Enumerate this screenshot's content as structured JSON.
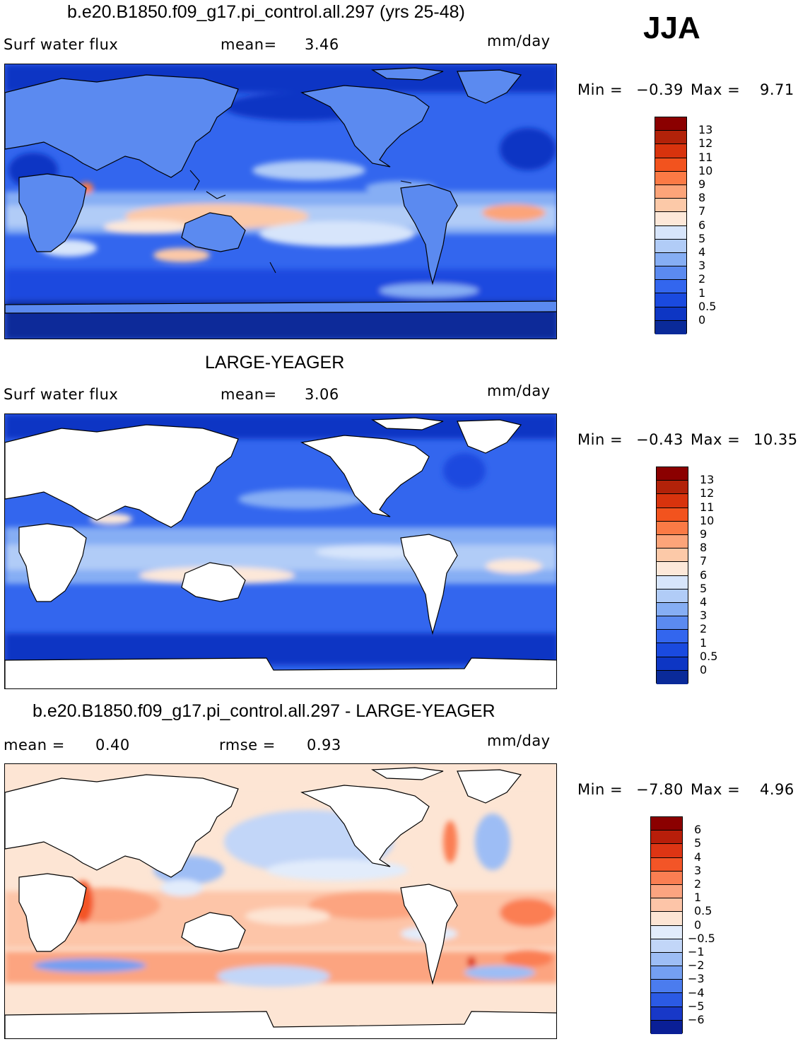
{
  "season": "JJA",
  "colors": {
    "land_white": "#ffffff",
    "coast": "#000000"
  },
  "panels": [
    {
      "id": "model",
      "title": "b.e20.B1850.f09_g17.pi_control.all.297 (yrs 25-48)",
      "left_label": "Surf water flux",
      "mid_label": "mean=",
      "mid_value": "3.46",
      "mid2_label": "",
      "mid2_value": "",
      "units": "mm/day",
      "min_label": "Min =",
      "min_value": "−0.39",
      "max_label": "Max =",
      "max_value": "9.71",
      "colorbar": {
        "ticks": [
          "13",
          "12",
          "11",
          "10",
          "9",
          "8",
          "7",
          "6",
          "5",
          "4",
          "3",
          "2",
          "1",
          "0.5",
          "0"
        ],
        "colors": [
          "#8b0000",
          "#b22209",
          "#d8330d",
          "#f2531e",
          "#fb7a45",
          "#fca479",
          "#fcc9a8",
          "#fde8d9",
          "#d7e5fb",
          "#b1ccf7",
          "#86aef4",
          "#5b8af0",
          "#3366ee",
          "#1a4adf",
          "#0d36c4",
          "#0a2a99"
        ]
      },
      "chart_data": {
        "type": "heatmap",
        "title": "b.e20.B1850.f09_g17.pi_control.all.297 (yrs 25-48)",
        "variable": "Surf water flux",
        "units": "mm/day",
        "mean": 3.46,
        "min": -0.39,
        "max": 9.71,
        "contour_levels": [
          0,
          0.5,
          1,
          2,
          3,
          4,
          5,
          6,
          7,
          8,
          9,
          10,
          11,
          12,
          13
        ],
        "land_masked": false
      }
    },
    {
      "id": "obs",
      "title": "LARGE-YEAGER",
      "left_label": "Surf water flux",
      "mid_label": "mean=",
      "mid_value": "3.06",
      "mid2_label": "",
      "mid2_value": "",
      "units": "mm/day",
      "min_label": "Min =",
      "min_value": "−0.43",
      "max_label": "Max =",
      "max_value": "10.35",
      "colorbar": {
        "ticks": [
          "13",
          "12",
          "11",
          "10",
          "9",
          "8",
          "7",
          "6",
          "5",
          "4",
          "3",
          "2",
          "1",
          "0.5",
          "0"
        ],
        "colors": [
          "#8b0000",
          "#b22209",
          "#d8330d",
          "#f2531e",
          "#fb7a45",
          "#fca479",
          "#fcc9a8",
          "#fde8d9",
          "#d7e5fb",
          "#b1ccf7",
          "#86aef4",
          "#5b8af0",
          "#3366ee",
          "#1a4adf",
          "#0d36c4",
          "#0a2a99"
        ]
      },
      "chart_data": {
        "type": "heatmap",
        "title": "LARGE-YEAGER",
        "variable": "Surf water flux",
        "units": "mm/day",
        "mean": 3.06,
        "min": -0.43,
        "max": 10.35,
        "contour_levels": [
          0,
          0.5,
          1,
          2,
          3,
          4,
          5,
          6,
          7,
          8,
          9,
          10,
          11,
          12,
          13
        ],
        "land_masked": true
      }
    },
    {
      "id": "diff",
      "title": "b.e20.B1850.f09_g17.pi_control.all.297 - LARGE-YEAGER",
      "left_label": "mean =",
      "mid_label": "",
      "mid_value": "0.40",
      "mid2_label": "rmse =",
      "mid2_value": "0.93",
      "units": "mm/day",
      "min_label": "Min =",
      "min_value": "−7.80",
      "max_label": "Max =",
      "max_value": "4.96",
      "colorbar": {
        "ticks": [
          "6",
          "5",
          "4",
          "3",
          "2",
          "1",
          "0.5",
          "0",
          "−0.5",
          "−1",
          "−2",
          "−3",
          "−4",
          "−5",
          "−6"
        ],
        "colors": [
          "#8b0000",
          "#b81e0a",
          "#dd3514",
          "#f35527",
          "#fb7e52",
          "#fca480",
          "#fdc5a8",
          "#fde5d4",
          "#e2ecfb",
          "#c2d6f8",
          "#9dbdf5",
          "#749ff2",
          "#4b7cee",
          "#2b5ae4",
          "#1838c8",
          "#0a1f96"
        ]
      },
      "chart_data": {
        "type": "heatmap",
        "title": "b.e20.B1850.f09_g17.pi_control.all.297 - LARGE-YEAGER",
        "units": "mm/day",
        "mean": 0.4,
        "rmse": 0.93,
        "min": -7.8,
        "max": 4.96,
        "contour_levels": [
          -6,
          -5,
          -4,
          -3,
          -2,
          -1,
          -0.5,
          0,
          0.5,
          1,
          2,
          3,
          4,
          5,
          6
        ],
        "land_masked": true
      }
    }
  ]
}
